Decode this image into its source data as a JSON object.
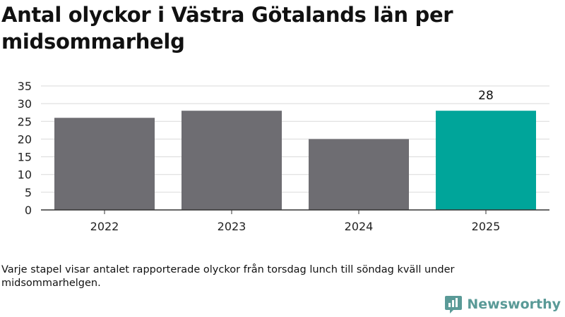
{
  "title": "Antal olyckor i Västra Götalands län per midsommarhelg",
  "note": "Varje stapel visar antalet rapporterade olyckor från torsdag lunch till söndag kväll under midsommarhelgen.",
  "brand": {
    "name": "Newsworthy",
    "color": "#5a9a97",
    "icon": "newsworthy-logo-icon"
  },
  "colors": {
    "bar": "#6e6d72",
    "highlight": "#00a59a",
    "grid": "#d9d9d9",
    "axis": "#333333"
  },
  "chart_data": {
    "type": "bar",
    "categories": [
      "2022",
      "2023",
      "2024",
      "2025"
    ],
    "values": [
      26,
      28,
      20,
      28
    ],
    "highlight_index": 3,
    "data_labels": [
      null,
      null,
      null,
      "28"
    ],
    "yticks": [
      0,
      5,
      10,
      15,
      20,
      25,
      30,
      35
    ],
    "ylim": [
      0,
      35
    ],
    "grid": true,
    "legend": "none"
  }
}
